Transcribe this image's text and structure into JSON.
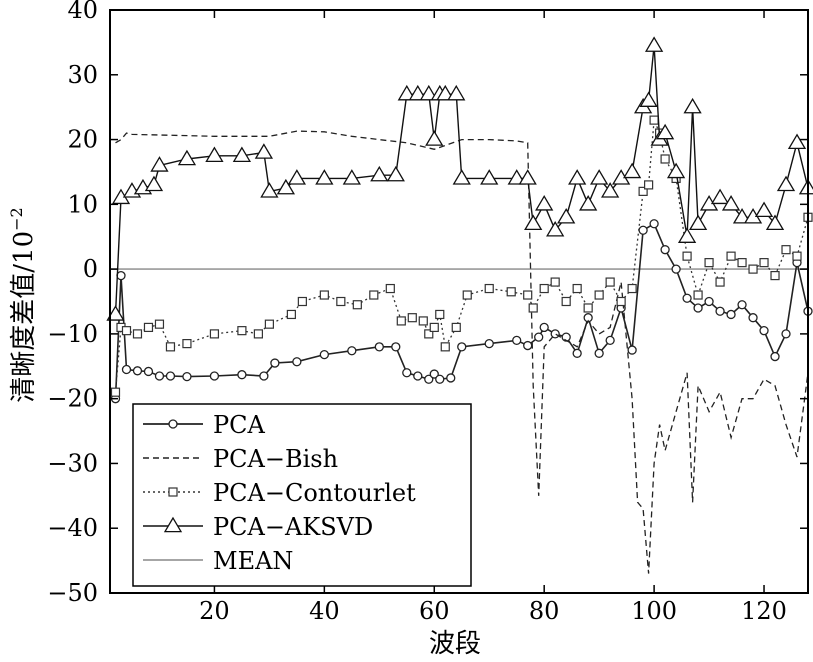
{
  "chart_data": {
    "type": "line",
    "title": "",
    "xlabel": "波段",
    "ylabel": "清晰度差值/10",
    "ylabel_exponent": "−2",
    "xlim": [
      1,
      128
    ],
    "ylim": [
      -50,
      40
    ],
    "xticks": [
      20,
      40,
      60,
      80,
      100,
      120
    ],
    "yticks": [
      -50,
      -40,
      -30,
      -20,
      -10,
      0,
      10,
      20,
      30,
      40
    ],
    "legend_position": "bottom-left",
    "series": [
      {
        "name": "PCA",
        "style": "solid-circle",
        "x": [
          2,
          3,
          4,
          6,
          8,
          10,
          12,
          15,
          20,
          25,
          29,
          31,
          35,
          40,
          45,
          50,
          53,
          55,
          57,
          59,
          60,
          61,
          63,
          65,
          70,
          75,
          77,
          79,
          80,
          82,
          84,
          86,
          88,
          90,
          92,
          94,
          96,
          98,
          100,
          102,
          104,
          106,
          108,
          110,
          112,
          114,
          116,
          118,
          120,
          122,
          124,
          126,
          128
        ],
        "values": [
          -20,
          -1,
          -15.5,
          -15.7,
          -15.8,
          -16.5,
          -16.5,
          -16.6,
          -16.5,
          -16.3,
          -16.5,
          -14.5,
          -14.3,
          -13.2,
          -12.6,
          -12.0,
          -12.0,
          -16.0,
          -16.5,
          -17.0,
          -16.2,
          -17.0,
          -16.8,
          -12.0,
          -11.5,
          -11.0,
          -11.8,
          -10.5,
          -9.0,
          -10.0,
          -10.5,
          -13,
          -7.5,
          -13,
          -11,
          -6,
          -12.5,
          6,
          7,
          3,
          0,
          -4.5,
          -6,
          -5,
          -6.5,
          -7,
          -5.5,
          -7.5,
          -9.5,
          -13.5,
          -10,
          1,
          -6.5
        ]
      },
      {
        "name": "PCA−Bish",
        "style": "dashed",
        "x": [
          2,
          3,
          4,
          5,
          10,
          20,
          30,
          35,
          40,
          45,
          50,
          55,
          60,
          65,
          70,
          75,
          77,
          78,
          79,
          80,
          82,
          84,
          86,
          88,
          90,
          92,
          94,
          96,
          97,
          98,
          99,
          100,
          101,
          102,
          104,
          106,
          107,
          108,
          110,
          112,
          114,
          116,
          118,
          120,
          122,
          124,
          126,
          128
        ],
        "values": [
          19.5,
          20,
          21,
          20.8,
          20.7,
          20.5,
          20.5,
          21.3,
          21.2,
          20.5,
          20,
          19.5,
          18.5,
          20,
          20,
          19.8,
          19.5,
          -18,
          -35,
          -12,
          -10,
          -11,
          -12,
          -8,
          -10,
          -9,
          -2,
          -20,
          -36,
          -37,
          -47,
          -30,
          -24,
          -28,
          -22,
          -16,
          -36,
          -18,
          -22,
          -19,
          -26,
          -20,
          -20,
          -17,
          -18,
          -24,
          -29,
          -16
        ]
      },
      {
        "name": "PCA−Contourlet",
        "style": "dotted-square",
        "x": [
          2,
          3,
          4,
          6,
          8,
          10,
          12,
          15,
          20,
          25,
          28,
          30,
          34,
          36,
          40,
          43,
          46,
          49,
          52,
          54,
          56,
          58,
          59,
          60,
          61,
          62,
          64,
          66,
          70,
          74,
          77,
          78,
          80,
          82,
          84,
          86,
          88,
          90,
          92,
          94,
          96,
          98,
          99,
          100,
          101,
          102,
          104,
          106,
          108,
          110,
          112,
          114,
          116,
          118,
          120,
          122,
          124,
          126,
          128
        ],
        "values": [
          -19,
          -9,
          -9.5,
          -10,
          -9,
          -8.5,
          -12,
          -11.5,
          -10,
          -9.5,
          -10,
          -8.5,
          -7,
          -5,
          -4,
          -5,
          -5.5,
          -4,
          -3,
          -8,
          -7.5,
          -8,
          -10,
          -9,
          -7,
          -12,
          -9,
          -4,
          -3,
          -3.5,
          -4,
          -6,
          -3,
          -2,
          -5,
          -3,
          -6,
          -4,
          -2,
          -5,
          -3,
          12,
          13,
          23,
          21,
          17,
          14,
          2,
          -4,
          1,
          -2,
          2,
          1,
          0,
          1,
          -1,
          3,
          2,
          8
        ]
      },
      {
        "name": "PCA−AKSVD",
        "style": "solid-triangle",
        "x": [
          2,
          3,
          5,
          7,
          9,
          10,
          15,
          20,
          25,
          29,
          30,
          33,
          35,
          40,
          45,
          50,
          53,
          55,
          57,
          59,
          60,
          61,
          62,
          64,
          65,
          70,
          75,
          77,
          78,
          80,
          82,
          84,
          86,
          88,
          90,
          92,
          94,
          96,
          98,
          99,
          100,
          101,
          102,
          104,
          106,
          107,
          108,
          110,
          112,
          114,
          116,
          118,
          120,
          122,
          124,
          126,
          128
        ],
        "values": [
          -7,
          11,
          12,
          12.5,
          13,
          16,
          17,
          17.5,
          17.5,
          18,
          12,
          12.5,
          14,
          14,
          14,
          14.5,
          14.5,
          27,
          27,
          27,
          20,
          27,
          27,
          27,
          14,
          14,
          14,
          14,
          7,
          10,
          6,
          8,
          14,
          10,
          14,
          12,
          14,
          15,
          25,
          26,
          34.5,
          20,
          21,
          15,
          5,
          25,
          7,
          10,
          11,
          10,
          8,
          8,
          9,
          7,
          13,
          19.5,
          12.5
        ]
      },
      {
        "name": "MEAN",
        "style": "solid-gray",
        "x": [
          1,
          128
        ],
        "values": [
          0,
          0
        ]
      }
    ]
  }
}
